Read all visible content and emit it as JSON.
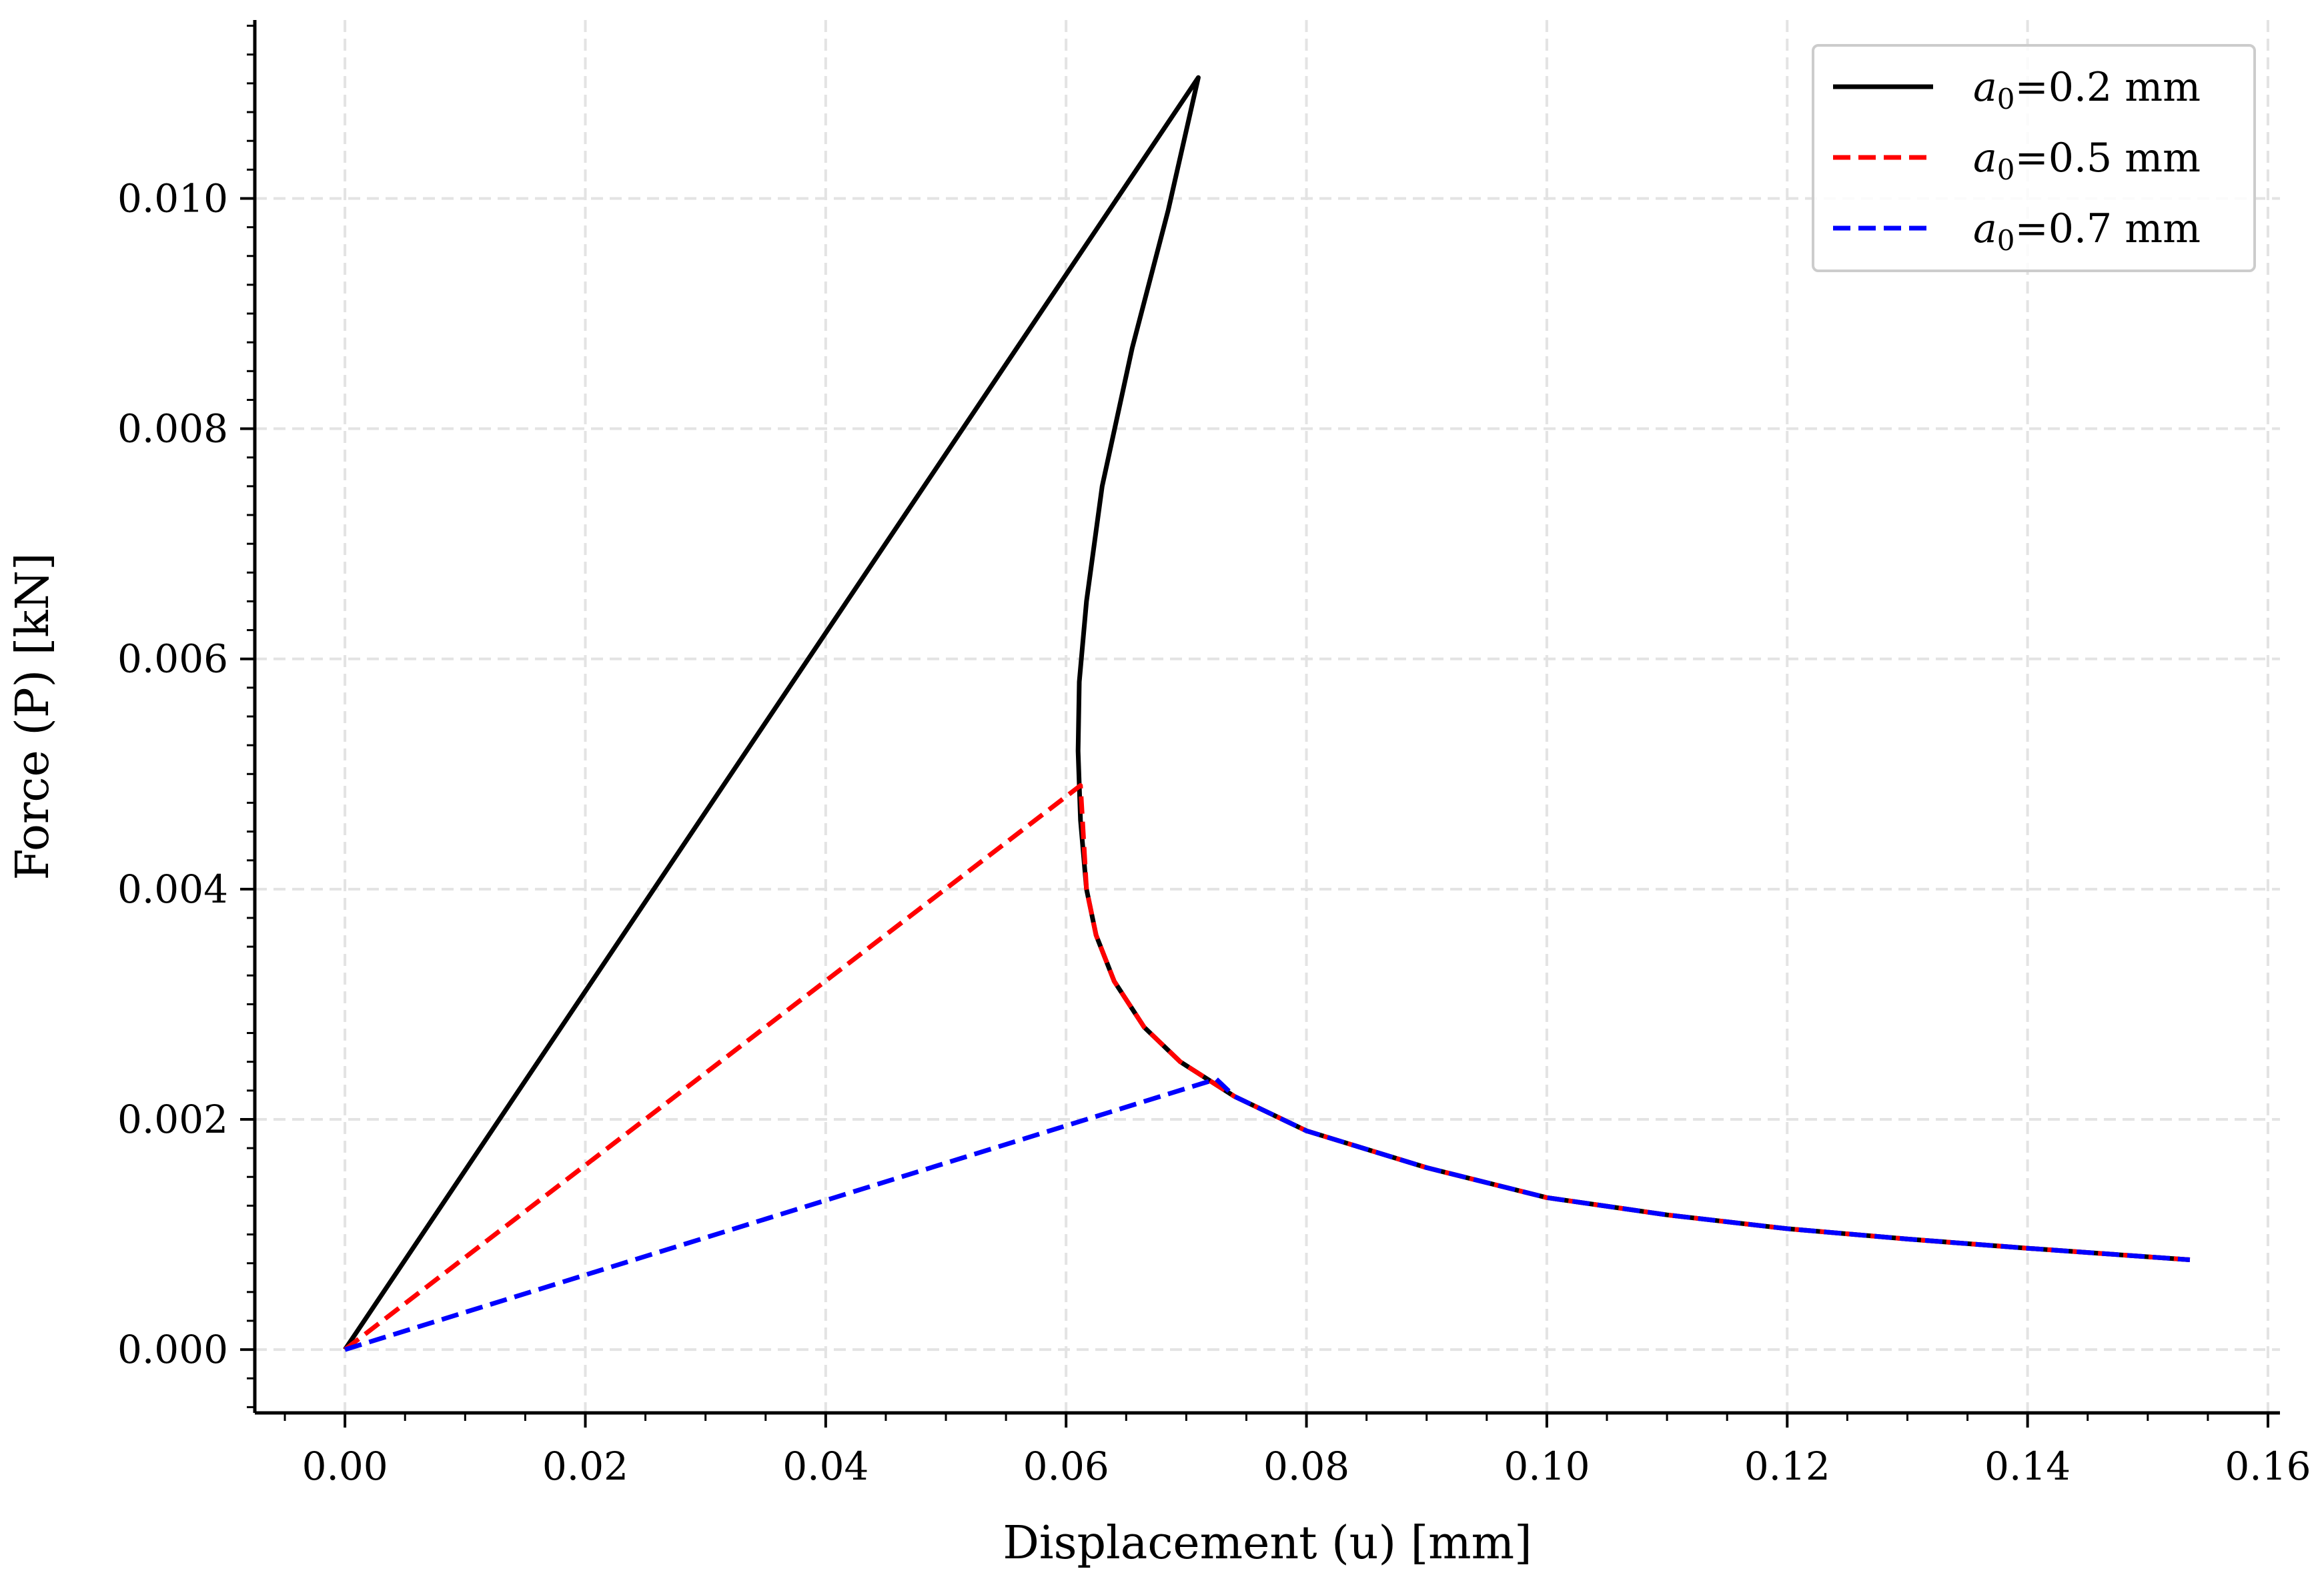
{
  "chart_data": {
    "type": "line",
    "xlabel": "Displacement (u) [mm]",
    "ylabel": "Force (P) [kN]",
    "xlim": [
      -0.0075,
      0.161
    ],
    "ylim": [
      -0.00055,
      0.01155
    ],
    "grid": true,
    "legend_position": "top-right",
    "x_ticks": [
      "0.00",
      "0.02",
      "0.04",
      "0.06",
      "0.08",
      "0.10",
      "0.12",
      "0.14",
      "0.16"
    ],
    "y_ticks": [
      "0.000",
      "0.002",
      "0.004",
      "0.006",
      "0.008",
      "0.010"
    ],
    "series": [
      {
        "name": "a₀=0.2 mm",
        "legend_base": "a",
        "legend_sub": "0",
        "legend_rest": "=0.2 mm",
        "color": "#000000",
        "dash": "solid",
        "x": [
          0.0,
          0.071,
          0.0685,
          0.0655,
          0.063,
          0.0617,
          0.0611,
          0.061,
          0.0612,
          0.0617,
          0.0625,
          0.064,
          0.0665,
          0.0695,
          0.074,
          0.08,
          0.09,
          0.1,
          0.11,
          0.12,
          0.13,
          0.14,
          0.1535
        ],
        "y": [
          0.0,
          0.01105,
          0.0099,
          0.0087,
          0.0075,
          0.0065,
          0.0058,
          0.0052,
          0.0046,
          0.004,
          0.0036,
          0.0032,
          0.0028,
          0.0025,
          0.0022,
          0.0019,
          0.00158,
          0.00132,
          0.00117,
          0.00105,
          0.00096,
          0.00088,
          0.00078
        ]
      },
      {
        "name": "a₀=0.5 mm",
        "legend_base": "a",
        "legend_sub": "0",
        "legend_rest": "=0.5 mm",
        "color": "#ff0000",
        "dash": "dashed",
        "x": [
          0.0,
          0.0612,
          0.0617,
          0.0625,
          0.064,
          0.0665,
          0.0695,
          0.074,
          0.08,
          0.09,
          0.1,
          0.11,
          0.12,
          0.13,
          0.14,
          0.1535
        ],
        "y": [
          0.0,
          0.0049,
          0.004,
          0.0036,
          0.0032,
          0.0028,
          0.0025,
          0.0022,
          0.0019,
          0.00158,
          0.00132,
          0.00117,
          0.00105,
          0.00096,
          0.00088,
          0.00078
        ]
      },
      {
        "name": "a₀=0.7 mm",
        "legend_base": "a",
        "legend_sub": "0",
        "legend_rest": "=0.7 mm",
        "color": "#0000ff",
        "dash": "dashed",
        "x": [
          0.0,
          0.0725,
          0.074,
          0.08,
          0.09,
          0.1,
          0.11,
          0.12,
          0.13,
          0.14,
          0.1535
        ],
        "y": [
          0.0,
          0.00235,
          0.0022,
          0.0019,
          0.00158,
          0.00132,
          0.00117,
          0.00105,
          0.00096,
          0.00088,
          0.00078
        ]
      }
    ]
  }
}
